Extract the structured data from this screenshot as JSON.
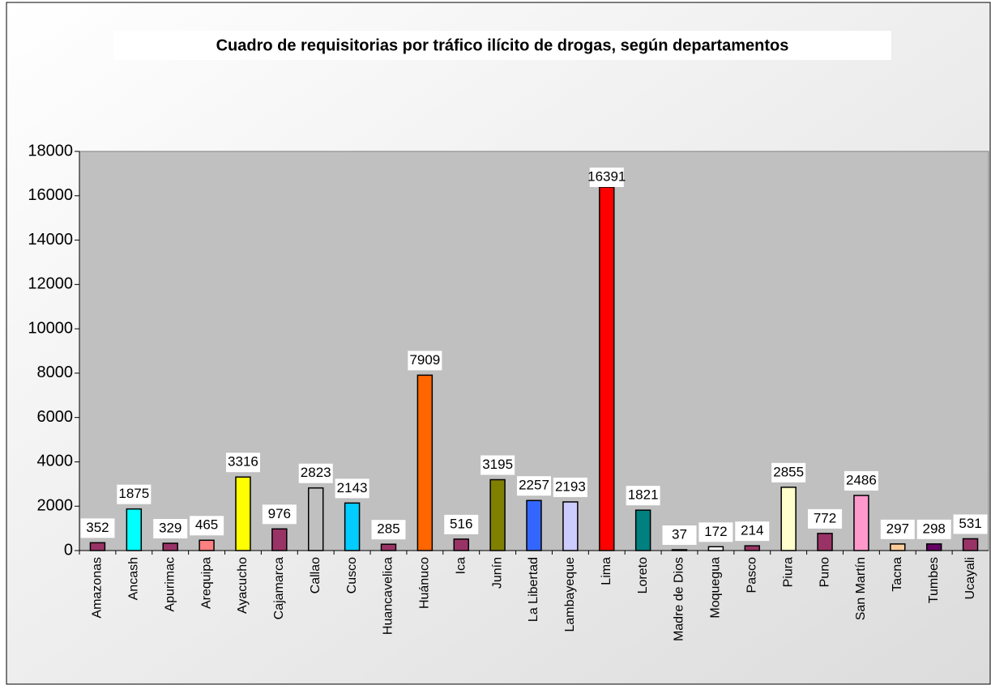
{
  "chart_data": {
    "type": "bar",
    "title": "Cuadro de requisitorias por tráfico ilícito de drogas, según departamentos",
    "categories": [
      "Amazonas",
      "Ancash",
      "Apurimac",
      "Arequipa",
      "Ayacucho",
      "Cajamarca",
      "Callao",
      "Cusco",
      "Huancavelica",
      "Huánuco",
      "Ica",
      "Junín",
      "La Libertad",
      "Lambayeque",
      "Lima",
      "Loreto",
      "Madre de Dios",
      "Moquegua",
      "Pasco",
      "Piura",
      "Puno",
      "San Martín",
      "Tacna",
      "Tumbes",
      "Ucayali"
    ],
    "values": [
      352,
      1875,
      329,
      465,
      3316,
      976,
      2823,
      2143,
      285,
      7909,
      516,
      3195,
      2257,
      2193,
      16391,
      1821,
      37,
      172,
      214,
      2855,
      772,
      2486,
      297,
      298,
      531
    ],
    "colors": [
      "#993366",
      "#00ffff",
      "#993366",
      "#ff8080",
      "#ffff00",
      "#993366",
      "#c0c0c0",
      "#00ccff",
      "#993366",
      "#ff6600",
      "#993366",
      "#808000",
      "#3366ff",
      "#ccccff",
      "#ff0000",
      "#008080",
      "#000000",
      "#ffffff",
      "#993366",
      "#ffffcc",
      "#993366",
      "#ff99cc",
      "#ffcc99",
      "#660066",
      "#993366"
    ],
    "ylim": [
      0,
      18000
    ],
    "yticks": [
      0,
      2000,
      4000,
      6000,
      8000,
      10000,
      12000,
      14000,
      16000,
      18000
    ],
    "grid": false
  }
}
